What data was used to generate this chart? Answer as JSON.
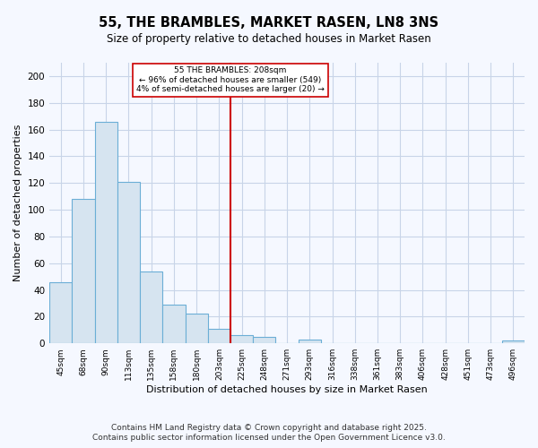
{
  "title": "55, THE BRAMBLES, MARKET RASEN, LN8 3NS",
  "subtitle": "Size of property relative to detached houses in Market Rasen",
  "xlabel": "Distribution of detached houses by size in Market Rasen",
  "ylabel": "Number of detached properties",
  "bin_labels": [
    "45sqm",
    "68sqm",
    "90sqm",
    "113sqm",
    "135sqm",
    "158sqm",
    "180sqm",
    "203sqm",
    "225sqm",
    "248sqm",
    "271sqm",
    "293sqm",
    "316sqm",
    "338sqm",
    "361sqm",
    "383sqm",
    "406sqm",
    "428sqm",
    "451sqm",
    "473sqm",
    "496sqm"
  ],
  "bin_values": [
    46,
    108,
    166,
    121,
    54,
    29,
    22,
    11,
    6,
    5,
    0,
    3,
    0,
    0,
    0,
    0,
    0,
    0,
    0,
    0,
    2
  ],
  "bar_color": "#d6e4f0",
  "bar_edgecolor": "#6baed6",
  "vline_x": 7.5,
  "vline_color": "#cc0000",
  "annotation_title": "55 THE BRAMBLES: 208sqm",
  "annotation_line1": "← 96% of detached houses are smaller (549)",
  "annotation_line2": "4% of semi-detached houses are larger (20) →",
  "ylim": [
    0,
    210
  ],
  "yticks": [
    0,
    20,
    40,
    60,
    80,
    100,
    120,
    140,
    160,
    180,
    200
  ],
  "background_color": "#f5f8ff",
  "grid_color": "#c8d4e8",
  "footnote1": "Contains HM Land Registry data © Crown copyright and database right 2025.",
  "footnote2": "Contains public sector information licensed under the Open Government Licence v3.0."
}
